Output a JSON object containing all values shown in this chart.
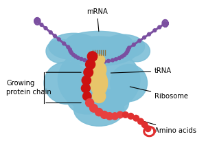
{
  "bg_color": "#ffffff",
  "ribosome_color": "#7abdd6",
  "trna_color": "#e8c56a",
  "mrna_color": "#7b4fa0",
  "amino_chain_dark": "#cc1111",
  "amino_chain_light": "#e84040",
  "amino_free_color": "#e03030",
  "label_fontsize": 7.2,
  "labels": {
    "amino_acids": "Amino acids",
    "ribosome": "Ribosome",
    "trna": "tRNA",
    "mrna": "mRNA",
    "growing_chain": "Growing\nprotein chain"
  },
  "figsize": [
    3.0,
    2.21
  ],
  "dpi": 100
}
